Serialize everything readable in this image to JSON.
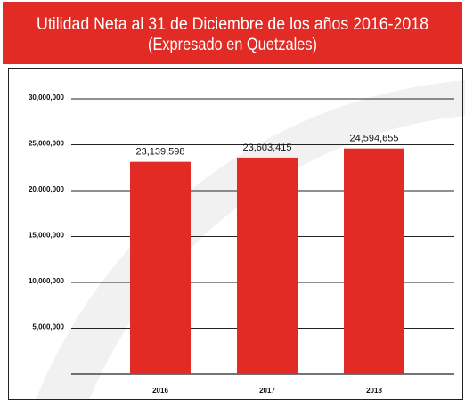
{
  "chart_data": {
    "type": "bar",
    "title": "Utilidad Neta al 31 de Diciembre de los años 2016-2018",
    "subtitle": "(Expresado en Quetzales)",
    "categories": [
      "2016",
      "2017",
      "2018"
    ],
    "values": [
      23139598,
      23603415,
      24594655
    ],
    "value_labels": [
      "23,139,598",
      "23,603,415",
      "24,594,655"
    ],
    "color": "#e32b26",
    "ylim": [
      0,
      30000000
    ],
    "yticks": [
      {
        "value": 5000000,
        "label": "5,000,000"
      },
      {
        "value": 10000000,
        "label": "10,000,000"
      },
      {
        "value": 15000000,
        "label": "15,000,000"
      },
      {
        "value": 20000000,
        "label": "20,000,000"
      },
      {
        "value": 25000000,
        "label": "25,000,000"
      },
      {
        "value": 30000000,
        "label": "30,000,000"
      }
    ],
    "grid": true
  }
}
